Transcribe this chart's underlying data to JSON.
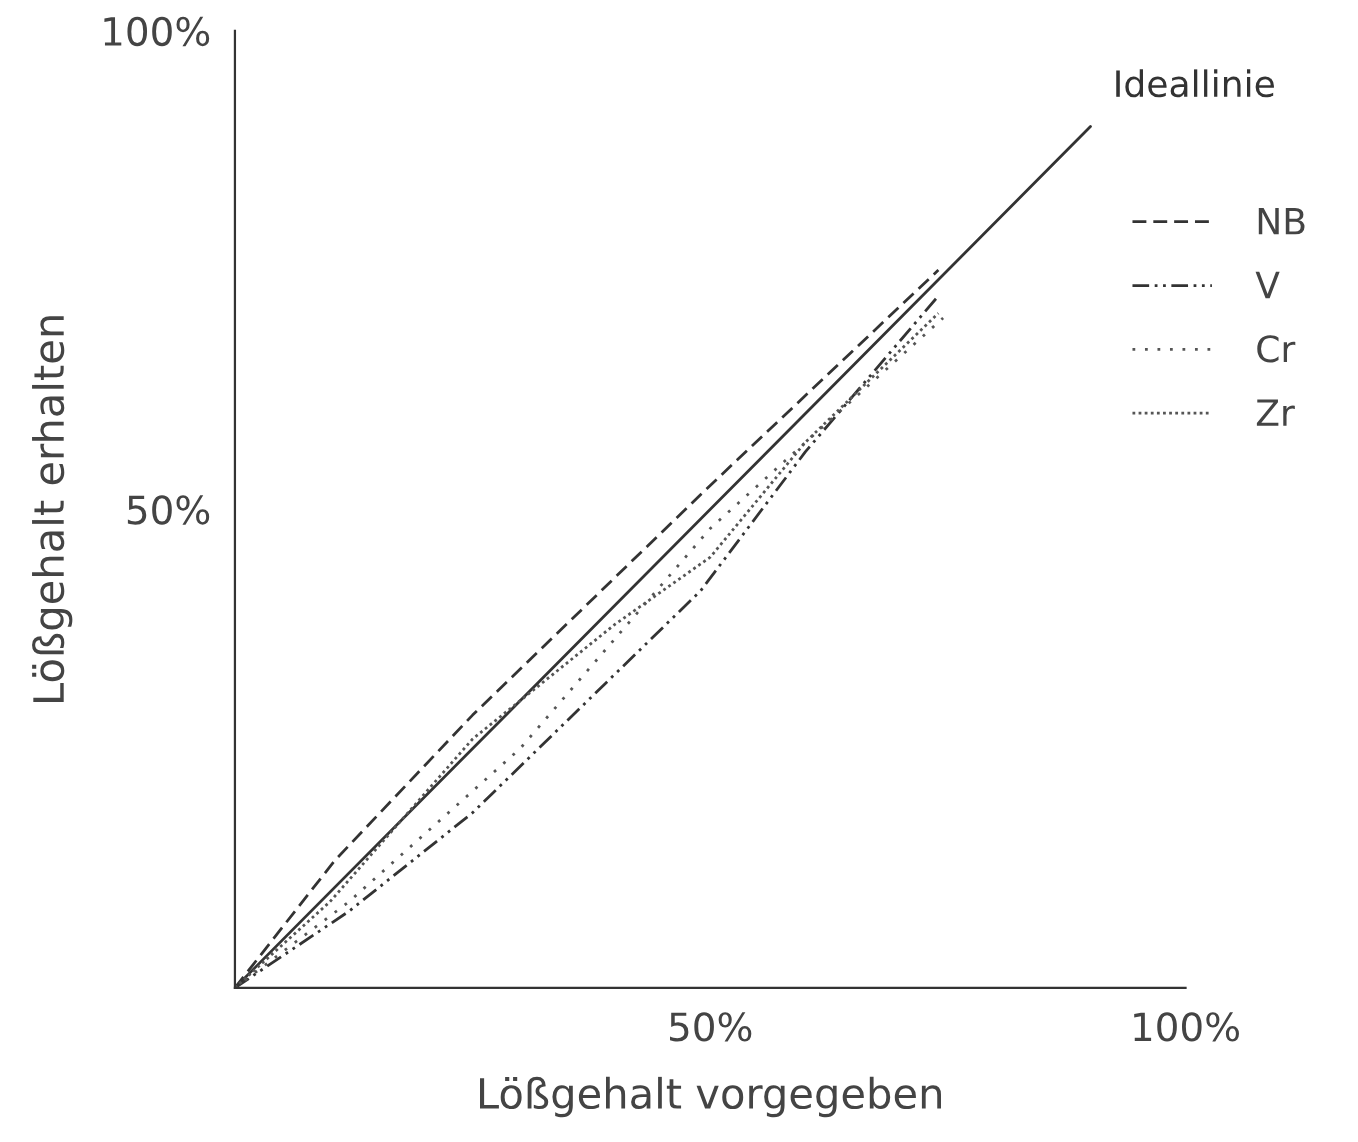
{
  "chart_data": {
    "type": "line",
    "xlabel": "Lößgehalt vorgegeben",
    "ylabel": "Lößgehalt erhalten",
    "xlim": [
      0,
      100
    ],
    "ylim": [
      0,
      100
    ],
    "xticks": [
      {
        "value": 50,
        "label": "50%"
      },
      {
        "value": 100,
        "label": "100%"
      }
    ],
    "yticks": [
      {
        "value": 50,
        "label": "50%"
      },
      {
        "value": 100,
        "label": "100%"
      }
    ],
    "grid": false,
    "legend": "top right",
    "marker": "none",
    "series": [
      {
        "name": "Ideallinie",
        "color": "#333333",
        "line_style": "solid",
        "x": [
          0,
          90
        ],
        "values": [
          0,
          90
        ]
      },
      {
        "name": "NB",
        "color": "#333333",
        "line_style": "dashed",
        "x": [
          0,
          10.5,
          25,
          50,
          74
        ],
        "values": [
          0,
          13.3,
          28.5,
          52.5,
          75
        ]
      },
      {
        "name": "V",
        "color": "#333333",
        "line_style": "dashdot",
        "x": [
          0,
          12,
          25,
          49,
          60,
          74
        ],
        "values": [
          0,
          8,
          18.3,
          41.5,
          56,
          72.3
        ]
      },
      {
        "name": "Cr",
        "color": "#555555",
        "line_style": "loosely dotted",
        "x": [
          0,
          12,
          30,
          50,
          74.5
        ],
        "values": [
          0,
          9,
          25,
          48,
          70
        ]
      },
      {
        "name": "Zr",
        "color": "#555555",
        "line_style": "dotted",
        "x": [
          0,
          10,
          25,
          40,
          50,
          60,
          74
        ],
        "values": [
          0,
          9,
          26,
          38,
          45,
          57,
          70.5
        ]
      }
    ]
  }
}
